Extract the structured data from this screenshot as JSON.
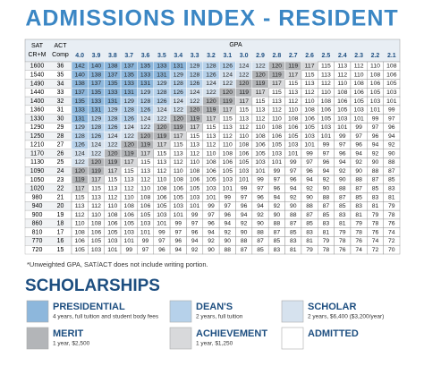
{
  "header": {
    "title": "ADMISSIONS INDEX - RESIDENT"
  },
  "table": {
    "sat_header": [
      "SAT",
      "CR+M"
    ],
    "act_header": [
      "ACT",
      "Comp"
    ],
    "gpa_header": "GPA",
    "gpa": [
      "4.0",
      "3.9",
      "3.8",
      "3.7",
      "3.6",
      "3.5",
      "3.4",
      "3.3",
      "3.2",
      "3.1",
      "3.0",
      "2.9",
      "2.8",
      "2.7",
      "2.6",
      "2.5",
      "2.4",
      "2.3",
      "2.2",
      "2.1"
    ],
    "rows": [
      {
        "sat": 1600,
        "act": 36,
        "values": [
          142,
          140,
          138,
          137,
          135,
          133,
          131,
          129,
          128,
          126,
          124,
          122,
          120,
          119,
          117,
          115,
          113,
          112,
          110,
          108
        ]
      },
      {
        "sat": 1540,
        "act": 35,
        "values": [
          140,
          138,
          137,
          135,
          133,
          131,
          129,
          128,
          126,
          124,
          122,
          120,
          119,
          117,
          115,
          113,
          112,
          110,
          108,
          106
        ]
      },
      {
        "sat": 1490,
        "act": 34,
        "values": [
          138,
          137,
          135,
          133,
          131,
          129,
          128,
          126,
          124,
          122,
          120,
          119,
          117,
          115,
          113,
          112,
          110,
          108,
          106,
          105
        ]
      },
      {
        "sat": 1440,
        "act": 33,
        "values": [
          137,
          135,
          133,
          131,
          129,
          128,
          126,
          124,
          122,
          120,
          119,
          117,
          115,
          113,
          112,
          110,
          108,
          106,
          105,
          103
        ]
      },
      {
        "sat": 1400,
        "act": 32,
        "values": [
          135,
          133,
          131,
          129,
          128,
          126,
          124,
          122,
          120,
          119,
          117,
          115,
          113,
          112,
          110,
          108,
          106,
          105,
          103,
          101
        ]
      },
      {
        "sat": 1360,
        "act": 31,
        "values": [
          133,
          131,
          129,
          128,
          126,
          124,
          122,
          120,
          119,
          117,
          115,
          113,
          112,
          110,
          108,
          106,
          105,
          103,
          101,
          99
        ]
      },
      {
        "sat": 1330,
        "act": 30,
        "values": [
          131,
          129,
          128,
          126,
          124,
          122,
          120,
          119,
          117,
          115,
          113,
          112,
          110,
          108,
          106,
          105,
          103,
          101,
          99,
          97
        ]
      },
      {
        "sat": 1290,
        "act": 29,
        "values": [
          129,
          128,
          126,
          124,
          122,
          120,
          119,
          117,
          115,
          113,
          112,
          110,
          108,
          106,
          105,
          103,
          101,
          99,
          97,
          96
        ]
      },
      {
        "sat": 1250,
        "act": 28,
        "values": [
          128,
          126,
          124,
          122,
          120,
          119,
          117,
          115,
          113,
          112,
          110,
          108,
          106,
          105,
          103,
          101,
          99,
          97,
          96,
          94
        ]
      },
      {
        "sat": 1210,
        "act": 27,
        "values": [
          126,
          124,
          122,
          120,
          119,
          117,
          115,
          113,
          112,
          110,
          108,
          106,
          105,
          103,
          101,
          99,
          97,
          96,
          94,
          92
        ]
      },
      {
        "sat": 1170,
        "act": 26,
        "values": [
          124,
          122,
          120,
          119,
          117,
          115,
          113,
          112,
          110,
          108,
          106,
          105,
          103,
          101,
          99,
          97,
          96,
          94,
          92,
          90
        ]
      },
      {
        "sat": 1130,
        "act": 25,
        "values": [
          122,
          120,
          119,
          117,
          115,
          113,
          112,
          110,
          108,
          106,
          105,
          103,
          101,
          99,
          97,
          96,
          94,
          92,
          90,
          88
        ]
      },
      {
        "sat": 1090,
        "act": 24,
        "values": [
          120,
          119,
          117,
          115,
          113,
          112,
          110,
          108,
          106,
          105,
          103,
          101,
          99,
          97,
          96,
          94,
          92,
          90,
          88,
          87
        ]
      },
      {
        "sat": 1050,
        "act": 23,
        "values": [
          119,
          117,
          115,
          113,
          112,
          110,
          108,
          106,
          105,
          103,
          101,
          99,
          97,
          96,
          94,
          92,
          90,
          88,
          87,
          85
        ]
      },
      {
        "sat": 1020,
        "act": 22,
        "values": [
          117,
          115,
          113,
          112,
          110,
          108,
          106,
          105,
          103,
          101,
          99,
          97,
          96,
          94,
          92,
          90,
          88,
          87,
          85,
          83
        ]
      },
      {
        "sat": 980,
        "act": 21,
        "values": [
          115,
          113,
          112,
          110,
          108,
          106,
          105,
          103,
          101,
          99,
          97,
          96,
          94,
          92,
          90,
          88,
          87,
          85,
          83,
          81
        ]
      },
      {
        "sat": 940,
        "act": 20,
        "values": [
          113,
          112,
          110,
          108,
          106,
          105,
          103,
          101,
          99,
          97,
          96,
          94,
          92,
          90,
          88,
          87,
          85,
          83,
          81,
          79
        ]
      },
      {
        "sat": 900,
        "act": 19,
        "values": [
          112,
          110,
          108,
          106,
          105,
          103,
          101,
          99,
          97,
          96,
          94,
          92,
          90,
          88,
          87,
          85,
          83,
          81,
          79,
          78
        ]
      },
      {
        "sat": 860,
        "act": 18,
        "values": [
          110,
          108,
          106,
          105,
          103,
          101,
          99,
          97,
          96,
          94,
          92,
          90,
          88,
          87,
          85,
          83,
          81,
          79,
          78,
          76
        ]
      },
      {
        "sat": 810,
        "act": 17,
        "values": [
          108,
          106,
          105,
          103,
          101,
          99,
          97,
          96,
          94,
          92,
          90,
          88,
          87,
          85,
          83,
          81,
          79,
          78,
          76,
          74
        ]
      },
      {
        "sat": 770,
        "act": 16,
        "values": [
          106,
          105,
          103,
          101,
          99,
          97,
          96,
          94,
          92,
          90,
          88,
          87,
          85,
          83,
          81,
          79,
          78,
          76,
          74,
          72
        ]
      },
      {
        "sat": 720,
        "act": 15,
        "values": [
          105,
          103,
          101,
          99,
          97,
          96,
          94,
          92,
          90,
          88,
          87,
          85,
          83,
          81,
          79,
          78,
          76,
          74,
          72,
          70
        ]
      }
    ]
  },
  "footnote": "*Unweighted GPA, SAT/ACT does not include writing portion.",
  "scholarships": {
    "title": "SCHOLARSHIPS",
    "items": [
      {
        "name": "PRESIDENTIAL",
        "details": "4 years, full tuition and student body fees"
      },
      {
        "name": "DEAN'S",
        "details": "2 years, full tuition"
      },
      {
        "name": "SCHOLAR",
        "details": "2 years, $6,400 ($3,200/year)"
      },
      {
        "name": "MERIT",
        "details": "1 year, $2,500"
      },
      {
        "name": "ACHIEVEMENT",
        "details": "1 year, $1,250"
      },
      {
        "name": "ADMITTED"
      }
    ]
  }
}
